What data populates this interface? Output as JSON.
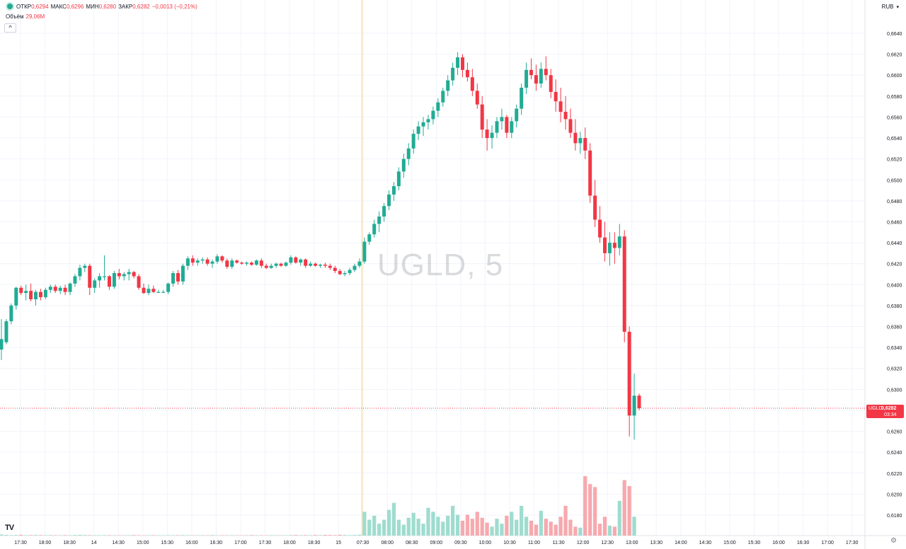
{
  "legend": {
    "open_label": "ОТКР",
    "open": "0,6294",
    "high_label": "МАКС",
    "high": "0,6296",
    "low_label": "МИН",
    "low": "0,6280",
    "close_label": "ЗАКР",
    "close": "0,6282",
    "change": "−0,0013 (−0,21%)"
  },
  "volume_legend": {
    "label": "Объём",
    "value": "29,06M"
  },
  "collapse_icon": "chevron-up-icon",
  "currency": {
    "label": "RUB",
    "icon": "chevron-down-icon"
  },
  "watermark": "UGLD, 5",
  "last_price": {
    "symbol": "UGLD",
    "price": "0,6282",
    "countdown": "03:34",
    "value": 0.6282
  },
  "colors": {
    "up": "#22ab94",
    "down": "#f23645",
    "up_volume": "#9fdccf",
    "down_volume": "#f7a9ae",
    "grid": "#f0f3fa"
  },
  "chart_data": {
    "type": "candlestick",
    "price_axis": {
      "range": [
        0.6172,
        0.6652
      ],
      "ticks": [
        "0,6640",
        "0,6620",
        "0,6600",
        "0,6580",
        "0,6560",
        "0,6540",
        "0,6520",
        "0,6500",
        "0,6480",
        "0,6460",
        "0,6440",
        "0,6420",
        "0,6400",
        "0,6380",
        "0,6360",
        "0,6340",
        "0,6320",
        "0,6300",
        "0,6280",
        "0,6260",
        "0,6240",
        "0,6220",
        "0,6200",
        "0,6180"
      ]
    },
    "time_axis": {
      "ticks": [
        "17:30",
        "18:00",
        "18:30",
        "14",
        "14:30",
        "15:00",
        "15:30",
        "16:00",
        "16:30",
        "17:00",
        "17:30",
        "18:00",
        "18:30",
        "15",
        "07:30",
        "08:00",
        "08:30",
        "09:00",
        "09:30",
        "10:00",
        "10:30",
        "11:00",
        "11:30",
        "12:00",
        "12:30",
        "13:00",
        "13:30",
        "14:00",
        "14:30",
        "15:00",
        "15:30",
        "16:00",
        "16:30",
        "17:00",
        "17:30"
      ]
    },
    "session_break_after_index": 73,
    "candles": [
      [
        0.6338,
        0.6367,
        0.6328,
        0.6348
      ],
      [
        0.6345,
        0.6367,
        0.6343,
        0.6365
      ],
      [
        0.6365,
        0.6382,
        0.6362,
        0.638
      ],
      [
        0.638,
        0.6398,
        0.6376,
        0.6397
      ],
      [
        0.6397,
        0.6399,
        0.639,
        0.6392
      ],
      [
        0.6392,
        0.64,
        0.6385,
        0.6394
      ],
      [
        0.6394,
        0.6401,
        0.6384,
        0.6386
      ],
      [
        0.6386,
        0.6395,
        0.638,
        0.6393
      ],
      [
        0.6393,
        0.6396,
        0.6385,
        0.6388
      ],
      [
        0.6388,
        0.6397,
        0.6386,
        0.6395
      ],
      [
        0.6395,
        0.64,
        0.6392,
        0.6398
      ],
      [
        0.6398,
        0.64,
        0.6392,
        0.6394
      ],
      [
        0.6394,
        0.6399,
        0.6391,
        0.6397
      ],
      [
        0.6397,
        0.64,
        0.639,
        0.6393
      ],
      [
        0.6393,
        0.6402,
        0.639,
        0.6401
      ],
      [
        0.6401,
        0.641,
        0.6398,
        0.6408
      ],
      [
        0.6408,
        0.6419,
        0.6404,
        0.6416
      ],
      [
        0.6416,
        0.642,
        0.6412,
        0.6418
      ],
      [
        0.6418,
        0.642,
        0.639,
        0.6397
      ],
      [
        0.6397,
        0.6406,
        0.6392,
        0.6404
      ],
      [
        0.6404,
        0.6411,
        0.6397,
        0.6408
      ],
      [
        0.6408,
        0.6428,
        0.6404,
        0.6408
      ],
      [
        0.6408,
        0.6409,
        0.6395,
        0.6398
      ],
      [
        0.6398,
        0.6413,
        0.6396,
        0.6411
      ],
      [
        0.6411,
        0.6415,
        0.6405,
        0.6408
      ],
      [
        0.6408,
        0.6412,
        0.6404,
        0.641
      ],
      [
        0.641,
        0.6415,
        0.6404,
        0.6412
      ],
      [
        0.6412,
        0.6413,
        0.6406,
        0.6408
      ],
      [
        0.6408,
        0.641,
        0.6395,
        0.6397
      ],
      [
        0.6397,
        0.6401,
        0.6391,
        0.6392
      ],
      [
        0.6392,
        0.64,
        0.639,
        0.6396
      ],
      [
        0.6396,
        0.6399,
        0.6392,
        0.6393
      ],
      [
        0.6393,
        0.6395,
        0.6392,
        0.6393
      ],
      [
        0.6393,
        0.6395,
        0.6392,
        0.6393
      ],
      [
        0.6393,
        0.6402,
        0.6391,
        0.6401
      ],
      [
        0.6401,
        0.6413,
        0.6398,
        0.6411
      ],
      [
        0.6411,
        0.6414,
        0.64,
        0.6403
      ],
      [
        0.6403,
        0.642,
        0.64,
        0.6418
      ],
      [
        0.6418,
        0.6427,
        0.6414,
        0.6425
      ],
      [
        0.6425,
        0.6428,
        0.6418,
        0.6421
      ],
      [
        0.6421,
        0.6425,
        0.6418,
        0.6423
      ],
      [
        0.6423,
        0.6426,
        0.642,
        0.6424
      ],
      [
        0.6424,
        0.6426,
        0.6418,
        0.642
      ],
      [
        0.642,
        0.6424,
        0.6416,
        0.6422
      ],
      [
        0.6422,
        0.6429,
        0.642,
        0.6427
      ],
      [
        0.6427,
        0.6428,
        0.6421,
        0.6423
      ],
      [
        0.6423,
        0.6425,
        0.6415,
        0.6417
      ],
      [
        0.6417,
        0.6425,
        0.6415,
        0.6423
      ],
      [
        0.6423,
        0.6424,
        0.642,
        0.6421
      ],
      [
        0.6421,
        0.6422,
        0.6419,
        0.642
      ],
      [
        0.642,
        0.6422,
        0.6418,
        0.6421
      ],
      [
        0.6421,
        0.6422,
        0.6418,
        0.6419
      ],
      [
        0.6419,
        0.6424,
        0.6418,
        0.6423
      ],
      [
        0.6423,
        0.6425,
        0.6416,
        0.6418
      ],
      [
        0.6418,
        0.642,
        0.6415,
        0.6416
      ],
      [
        0.6416,
        0.642,
        0.6415,
        0.6418
      ],
      [
        0.6418,
        0.6421,
        0.6416,
        0.642
      ],
      [
        0.642,
        0.6421,
        0.6417,
        0.6418
      ],
      [
        0.6418,
        0.6422,
        0.6417,
        0.6421
      ],
      [
        0.6421,
        0.6428,
        0.6419,
        0.6426
      ],
      [
        0.6426,
        0.6427,
        0.642,
        0.6421
      ],
      [
        0.6421,
        0.6425,
        0.6418,
        0.6424
      ],
      [
        0.6424,
        0.6425,
        0.6416,
        0.6418
      ],
      [
        0.6418,
        0.6422,
        0.6417,
        0.642
      ],
      [
        0.642,
        0.6421,
        0.6417,
        0.6418
      ],
      [
        0.6418,
        0.642,
        0.6416,
        0.6419
      ],
      [
        0.6419,
        0.6421,
        0.6416,
        0.6418
      ],
      [
        0.6418,
        0.642,
        0.6414,
        0.6416
      ],
      [
        0.6416,
        0.6418,
        0.6411,
        0.6413
      ],
      [
        0.6413,
        0.6415,
        0.6409,
        0.641
      ],
      [
        0.641,
        0.6413,
        0.6408,
        0.6411
      ],
      [
        0.6411,
        0.6416,
        0.6409,
        0.6414
      ],
      [
        0.6414,
        0.642,
        0.6412,
        0.6418
      ],
      [
        0.6418,
        0.6425,
        0.6416,
        0.6422
      ],
      [
        0.6422,
        0.6445,
        0.642,
        0.6441
      ],
      [
        0.6441,
        0.645,
        0.6438,
        0.6448
      ],
      [
        0.6448,
        0.6462,
        0.6445,
        0.6458
      ],
      [
        0.6458,
        0.647,
        0.645,
        0.6465
      ],
      [
        0.6465,
        0.6478,
        0.646,
        0.6475
      ],
      [
        0.6475,
        0.649,
        0.6471,
        0.6486
      ],
      [
        0.6486,
        0.6498,
        0.648,
        0.6494
      ],
      [
        0.6494,
        0.6512,
        0.649,
        0.6508
      ],
      [
        0.6508,
        0.6525,
        0.6502,
        0.652
      ],
      [
        0.652,
        0.6535,
        0.6514,
        0.653
      ],
      [
        0.653,
        0.6548,
        0.6525,
        0.6544
      ],
      [
        0.6544,
        0.6556,
        0.6538,
        0.6551
      ],
      [
        0.6551,
        0.656,
        0.6542,
        0.6555
      ],
      [
        0.6555,
        0.6562,
        0.6548,
        0.6558
      ],
      [
        0.6558,
        0.657,
        0.6553,
        0.6566
      ],
      [
        0.6566,
        0.6578,
        0.656,
        0.6574
      ],
      [
        0.6574,
        0.6588,
        0.657,
        0.6585
      ],
      [
        0.6585,
        0.66,
        0.658,
        0.6595
      ],
      [
        0.6595,
        0.6612,
        0.659,
        0.6607
      ],
      [
        0.6607,
        0.6622,
        0.66,
        0.6617
      ],
      [
        0.6617,
        0.662,
        0.6598,
        0.6605
      ],
      [
        0.6605,
        0.6612,
        0.6594,
        0.6598
      ],
      [
        0.6598,
        0.6606,
        0.658,
        0.6585
      ],
      [
        0.6585,
        0.6592,
        0.6568,
        0.6572
      ],
      [
        0.6572,
        0.658,
        0.654,
        0.6548
      ],
      [
        0.6548,
        0.6558,
        0.6528,
        0.654
      ],
      [
        0.654,
        0.6552,
        0.653,
        0.6545
      ],
      [
        0.6545,
        0.656,
        0.654,
        0.6556
      ],
      [
        0.6556,
        0.6568,
        0.6548,
        0.656
      ],
      [
        0.656,
        0.6562,
        0.654,
        0.6545
      ],
      [
        0.6545,
        0.656,
        0.654,
        0.6556
      ],
      [
        0.6556,
        0.6572,
        0.655,
        0.6568
      ],
      [
        0.6568,
        0.6592,
        0.6562,
        0.6588
      ],
      [
        0.6588,
        0.6612,
        0.6582,
        0.6605
      ],
      [
        0.6605,
        0.6616,
        0.6596,
        0.66
      ],
      [
        0.66,
        0.661,
        0.6585,
        0.6592
      ],
      [
        0.6592,
        0.6612,
        0.6588,
        0.6606
      ],
      [
        0.6606,
        0.6618,
        0.6595,
        0.66
      ],
      [
        0.66,
        0.6606,
        0.6578,
        0.6584
      ],
      [
        0.6584,
        0.6596,
        0.6565,
        0.6575
      ],
      [
        0.6575,
        0.6588,
        0.6555,
        0.6565
      ],
      [
        0.6565,
        0.658,
        0.6548,
        0.6558
      ],
      [
        0.6558,
        0.6568,
        0.654,
        0.6545
      ],
      [
        0.6545,
        0.6558,
        0.6528,
        0.6535
      ],
      [
        0.6535,
        0.6546,
        0.6525,
        0.654
      ],
      [
        0.654,
        0.655,
        0.652,
        0.6528
      ],
      [
        0.6528,
        0.6535,
        0.6478,
        0.6485
      ],
      [
        0.6485,
        0.65,
        0.6455,
        0.6462
      ],
      [
        0.6462,
        0.6475,
        0.644,
        0.6445
      ],
      [
        0.6445,
        0.646,
        0.6422,
        0.643
      ],
      [
        0.643,
        0.645,
        0.6418,
        0.644
      ],
      [
        0.644,
        0.645,
        0.642,
        0.6435
      ],
      [
        0.6435,
        0.6458,
        0.6428,
        0.6446
      ],
      [
        0.6446,
        0.6452,
        0.6345,
        0.6355
      ],
      [
        0.6355,
        0.636,
        0.6255,
        0.6275
      ],
      [
        0.6275,
        0.6315,
        0.6252,
        0.6294
      ],
      [
        0.6294,
        0.6296,
        0.628,
        0.6282
      ]
    ],
    "volumes": [
      0.1,
      0.07,
      0.05,
      0.06,
      0.08,
      0.04,
      0.05,
      0.06,
      0.05,
      0.04,
      0.05,
      0.04,
      0.03,
      0.05,
      0.04,
      0.06,
      0.07,
      0.06,
      0.05,
      0.04,
      0.04,
      0.05,
      0.04,
      0.03,
      0.04,
      0.03,
      0.04,
      0.05,
      0.04,
      0.03,
      0.03,
      0.04,
      0.03,
      0.03,
      0.04,
      0.03,
      0.04,
      0.05,
      0.04,
      0.03,
      0.03,
      0.04,
      0.03,
      0.05,
      0.03,
      0.04,
      0.03,
      0.04,
      0.03,
      0.03,
      0.04,
      0.05,
      0.03,
      0.04,
      0.03,
      0.04,
      0.03,
      0.03,
      0.04,
      0.05,
      0.06,
      0.04,
      0.05,
      0.04,
      0.06,
      0.05,
      0.07,
      0.06,
      0.05,
      0.08,
      0.06,
      0.05,
      0.06,
      0.08,
      2.4,
      1.6,
      2.0,
      1.2,
      1.6,
      2.6,
      3.3,
      1.6,
      1.1,
      1.8,
      2.3,
      1.7,
      1.2,
      2.8,
      2.4,
      1.9,
      1.4,
      2.0,
      3.0,
      2.1,
      1.5,
      2.1,
      1.7,
      2.4,
      1.8,
      1.3,
      0.9,
      1.7,
      1.2,
      2.0,
      2.4,
      1.6,
      3.0,
      1.9,
      1.5,
      1.1,
      2.5,
      1.7,
      1.4,
      1.1,
      1.9,
      3.0,
      1.6,
      0.9,
      0.8,
      6.0,
      5.2,
      4.9,
      1.2,
      1.9,
      1.0,
      0.9,
      3.5,
      5.6,
      5.0,
      1.9
    ],
    "volume_range": [
      0,
      10
    ]
  }
}
